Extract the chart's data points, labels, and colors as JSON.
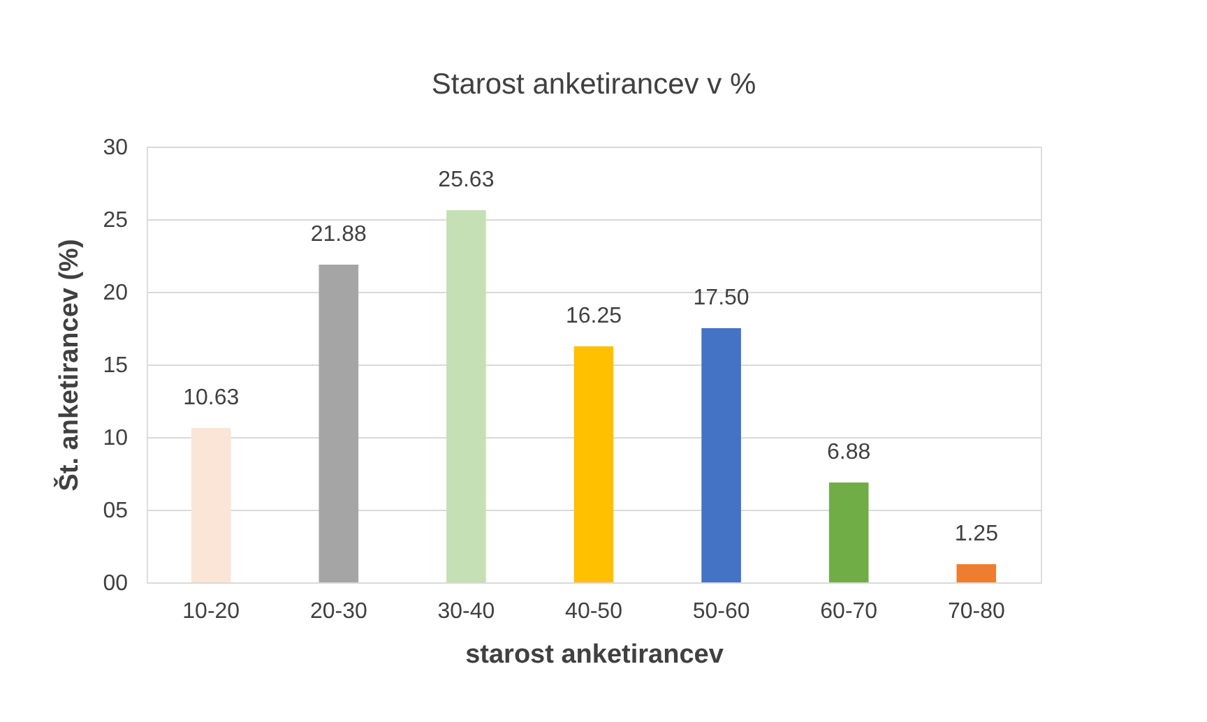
{
  "chart_data": {
    "type": "bar",
    "title": "Starost anketirancev v %",
    "xlabel": "starost anketirancev",
    "ylabel": "Št. anketirancev (%)",
    "categories": [
      "10-20",
      "20-30",
      "30-40",
      "40-50",
      "50-60",
      "60-70",
      "70-80"
    ],
    "values": [
      10.63,
      21.88,
      25.63,
      16.25,
      17.5,
      6.88,
      1.25
    ],
    "value_labels": [
      "10.63",
      "21.88",
      "25.63",
      "16.25",
      "17.50",
      "6.88",
      "1.25"
    ],
    "colors": [
      "#fbe5d6",
      "#a5a5a5",
      "#c5e0b4",
      "#ffc000",
      "#4472c4",
      "#70ad47",
      "#ed7d31"
    ],
    "ylim": [
      0,
      30
    ],
    "yticks": [
      {
        "value": 0,
        "label": "00"
      },
      {
        "value": 5,
        "label": "05"
      },
      10,
      15,
      20,
      25,
      30
    ],
    "grid": "y",
    "legend": false
  }
}
